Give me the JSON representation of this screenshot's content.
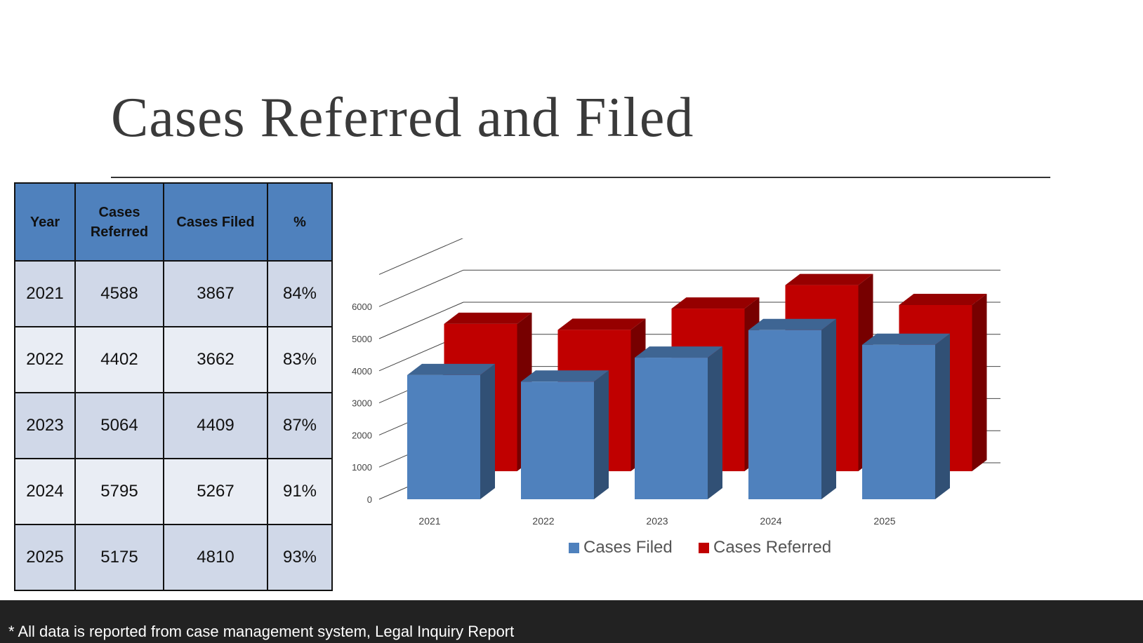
{
  "title": "Cases Referred and Filed",
  "table": {
    "headers": [
      "Year",
      "Cases Referred",
      "Cases Filed",
      "%"
    ],
    "rows": [
      [
        "2021",
        "4588",
        "3867",
        "84%"
      ],
      [
        "2022",
        "4402",
        "3662",
        "83%"
      ],
      [
        "2023",
        "5064",
        "4409",
        "87%"
      ],
      [
        "2024",
        "5795",
        "5267",
        "91%"
      ],
      [
        "2025",
        "5175",
        "4810",
        "93%"
      ]
    ]
  },
  "chart_data": {
    "type": "bar",
    "categories": [
      "2021",
      "2022",
      "2023",
      "2024",
      "2025"
    ],
    "series": [
      {
        "name": "Cases Filed",
        "values": [
          3867,
          3662,
          4409,
          5267,
          4810
        ],
        "color": "#4f81bd"
      },
      {
        "name": "Cases Referred",
        "values": [
          4588,
          4402,
          5064,
          5795,
          5175
        ],
        "color": "#c00000"
      }
    ],
    "yticks": [
      "0",
      "1000",
      "2000",
      "3000",
      "4000",
      "5000",
      "6000"
    ],
    "ylim": [
      0,
      7000
    ],
    "grid": true,
    "legend": "bottom",
    "title": "",
    "xlabel": "",
    "ylabel": ""
  },
  "footer": {
    "note": "* All data is reported from case management system, Legal Inquiry Report"
  }
}
